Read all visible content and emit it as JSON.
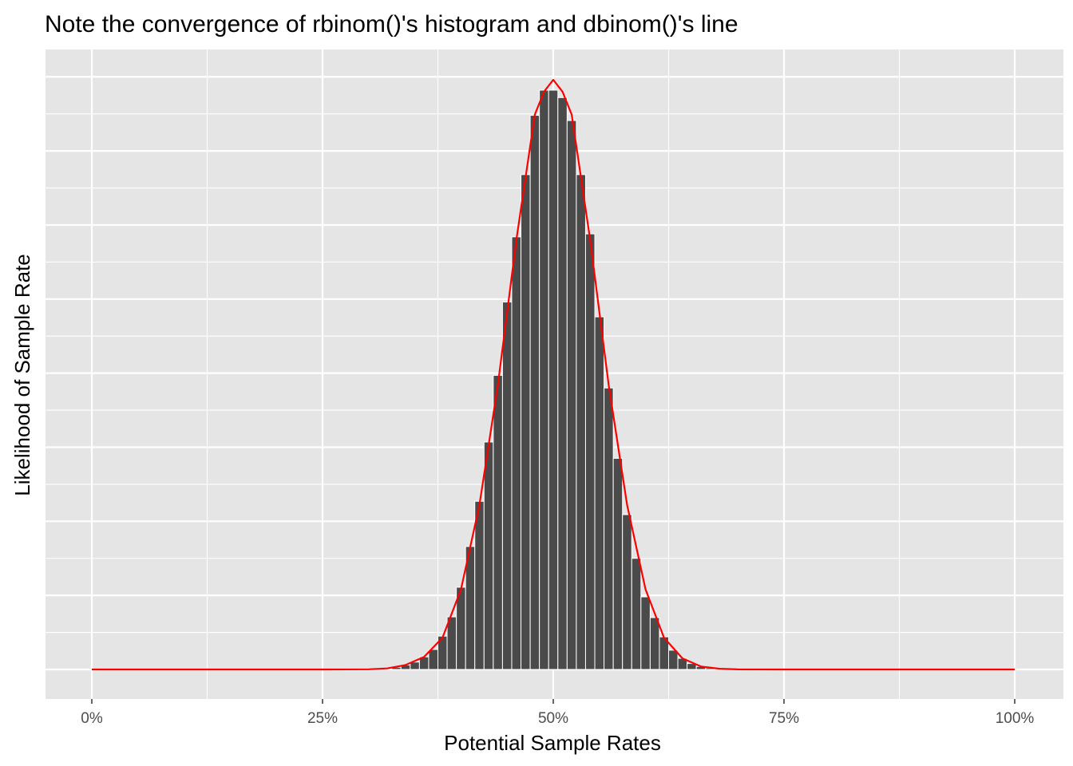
{
  "chart_data": {
    "type": "bar",
    "title": "Note the convergence of rbinom()'s histogram and dbinom()'s line",
    "xlabel": "Potential Sample Rates",
    "ylabel": "Likelihood of Sample Rate",
    "x_ticks": [
      "0%",
      "25%",
      "50%",
      "75%",
      "100%"
    ],
    "xlim": [
      0,
      1
    ],
    "ylim": [
      -0.004,
      0.0836
    ],
    "y_tick_labels_shown": false,
    "grid": true,
    "colors": {
      "panel_background": "#e5e5e5",
      "grid": "#ffffff",
      "bars": "#4a4a4a",
      "bar_edge": "#ffffff",
      "line": "#ff0000"
    },
    "series": [
      {
        "kind": "histogram",
        "x": [
          0.33,
          0.34,
          0.35,
          0.36,
          0.37,
          0.38,
          0.39,
          0.4,
          0.41,
          0.42,
          0.43,
          0.44,
          0.45,
          0.46,
          0.47,
          0.48,
          0.49,
          0.5,
          0.51,
          0.52,
          0.53,
          0.54,
          0.55,
          0.56,
          0.57,
          0.58,
          0.59,
          0.6,
          0.61,
          0.62,
          0.63,
          0.64,
          0.65,
          0.66,
          0.67
        ],
        "values": [
          0.0003,
          0.0006,
          0.001,
          0.0017,
          0.0027,
          0.0045,
          0.0071,
          0.0111,
          0.0166,
          0.0227,
          0.0307,
          0.0397,
          0.0496,
          0.0584,
          0.0668,
          0.0748,
          0.0782,
          0.0782,
          0.0772,
          0.0741,
          0.0668,
          0.0588,
          0.0476,
          0.038,
          0.0285,
          0.0209,
          0.015,
          0.0098,
          0.007,
          0.0044,
          0.0026,
          0.0015,
          0.0008,
          0.0004,
          0.0002
        ]
      },
      {
        "kind": "line",
        "x": [
          0.0,
          0.1,
          0.2,
          0.25,
          0.3,
          0.32,
          0.34,
          0.36,
          0.38,
          0.4,
          0.42,
          0.44,
          0.46,
          0.48,
          0.49,
          0.5,
          0.51,
          0.52,
          0.54,
          0.56,
          0.58,
          0.6,
          0.62,
          0.64,
          0.66,
          0.68,
          0.7,
          0.75,
          0.8,
          0.9,
          1.0
        ],
        "values": [
          0,
          0,
          0,
          0,
          2e-05,
          0.00014,
          0.0006,
          0.0017,
          0.0043,
          0.0108,
          0.0222,
          0.0384,
          0.058,
          0.0749,
          0.078,
          0.0796,
          0.078,
          0.0749,
          0.058,
          0.0384,
          0.0222,
          0.0108,
          0.0043,
          0.0015,
          0.0004,
          0.0001,
          1e-05,
          0,
          0,
          0,
          0
        ]
      }
    ]
  }
}
